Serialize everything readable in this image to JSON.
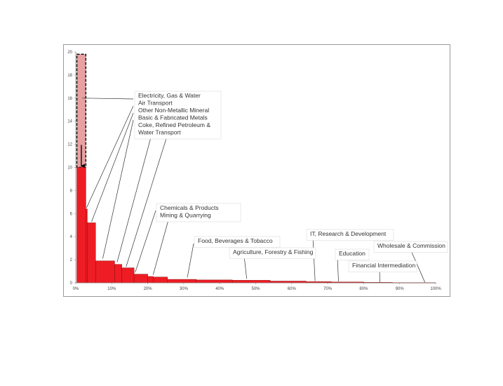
{
  "chart_data": {
    "type": "bar",
    "subtype": "variable-width cumulative bar",
    "title": "",
    "xlabel": "",
    "ylabel": "",
    "xlim": [
      0,
      100
    ],
    "ylim": [
      0,
      20
    ],
    "x_ticks": [
      0,
      10,
      20,
      30,
      40,
      50,
      60,
      70,
      80,
      90,
      100
    ],
    "x_tick_labels": [
      "0%",
      "10%",
      "20%",
      "30%",
      "40%",
      "50%",
      "60%",
      "70%",
      "80%",
      "90%",
      "100%"
    ],
    "y_ticks": [
      0,
      2,
      4,
      6,
      8,
      10,
      12,
      14,
      16,
      18,
      20
    ],
    "y_tick_labels": [
      "0",
      "2",
      "4",
      "6",
      "8",
      "10",
      "12",
      "14",
      "16",
      "18",
      "20"
    ],
    "grid": false,
    "colors": {
      "bar_fill": "#ee1c24",
      "bar_stroke": "#8a1010",
      "highlight_fill": "#e8a0a0",
      "leader": "#333333"
    },
    "highlight": {
      "x0": 0.3,
      "x1": 2.8,
      "top": 19.8,
      "base": 10
    },
    "bars": [
      {
        "x0": 0.3,
        "x1": 2.8,
        "value": 10.0
      },
      {
        "x0": 2.8,
        "x1": 3.2,
        "value": 6.4
      },
      {
        "x0": 3.2,
        "x1": 5.5,
        "value": 5.2
      },
      {
        "x0": 5.5,
        "x1": 10.8,
        "value": 1.9
      },
      {
        "x0": 10.8,
        "x1": 12.8,
        "value": 1.6
      },
      {
        "x0": 12.8,
        "x1": 16.2,
        "value": 1.3
      },
      {
        "x0": 16.2,
        "x1": 20.0,
        "value": 0.75
      },
      {
        "x0": 20.0,
        "x1": 21.5,
        "value": 0.55
      },
      {
        "x0": 21.5,
        "x1": 25.5,
        "value": 0.5
      },
      {
        "x0": 25.5,
        "x1": 33.5,
        "value": 0.3
      },
      {
        "x0": 33.5,
        "x1": 43.5,
        "value": 0.25
      },
      {
        "x0": 43.5,
        "x1": 54.0,
        "value": 0.22
      },
      {
        "x0": 54.0,
        "x1": 64.0,
        "value": 0.15
      },
      {
        "x0": 64.0,
        "x1": 71.0,
        "value": 0.1
      },
      {
        "x0": 71.0,
        "x1": 80.0,
        "value": 0.07
      },
      {
        "x0": 80.0,
        "x1": 88.0,
        "value": 0.04
      },
      {
        "x0": 88.0,
        "x1": 100.0,
        "value": 0.02
      }
    ],
    "annotations": [
      {
        "text": "Electricity, Gas & Water",
        "target_x": 1.8,
        "target_y": 16.0
      },
      {
        "text": "Air Transport",
        "target_x": 3.0,
        "target_y": 6.5
      },
      {
        "text": "Other Non-Metallic Mineral",
        "target_x": 4.4,
        "target_y": 5.3
      },
      {
        "text": "Basic & Fabricated Metals",
        "target_x": 7.5,
        "target_y": 2.1
      },
      {
        "text": "Coke, Refined Petroleum &",
        "target_x": 11.5,
        "target_y": 1.8
      },
      {
        "text": "Water Transport",
        "target_x": 14.0,
        "target_y": 1.4
      },
      {
        "text": "Chemicals & Products",
        "target_x": 16.5,
        "target_y": 0.9
      },
      {
        "text": "Mining & Quarrying",
        "target_x": 21.5,
        "target_y": 0.7
      },
      {
        "text": "Food, Beverages & Tobacco",
        "target_x": 31.0,
        "target_y": 0.45
      },
      {
        "text": "Agriculture, Forestry & Fishing",
        "target_x": 47.5,
        "target_y": 0.35
      },
      {
        "text": "IT, Research & Development",
        "target_x": 66.5,
        "target_y": 0.15
      },
      {
        "text": "Education",
        "target_x": 73.0,
        "target_y": 0.12
      },
      {
        "text": "Financial Intermediation",
        "target_x": 84.5,
        "target_y": 0.06
      },
      {
        "text": "Wholesale & Commission",
        "target_x": 97.0,
        "target_y": 0.05
      }
    ]
  }
}
